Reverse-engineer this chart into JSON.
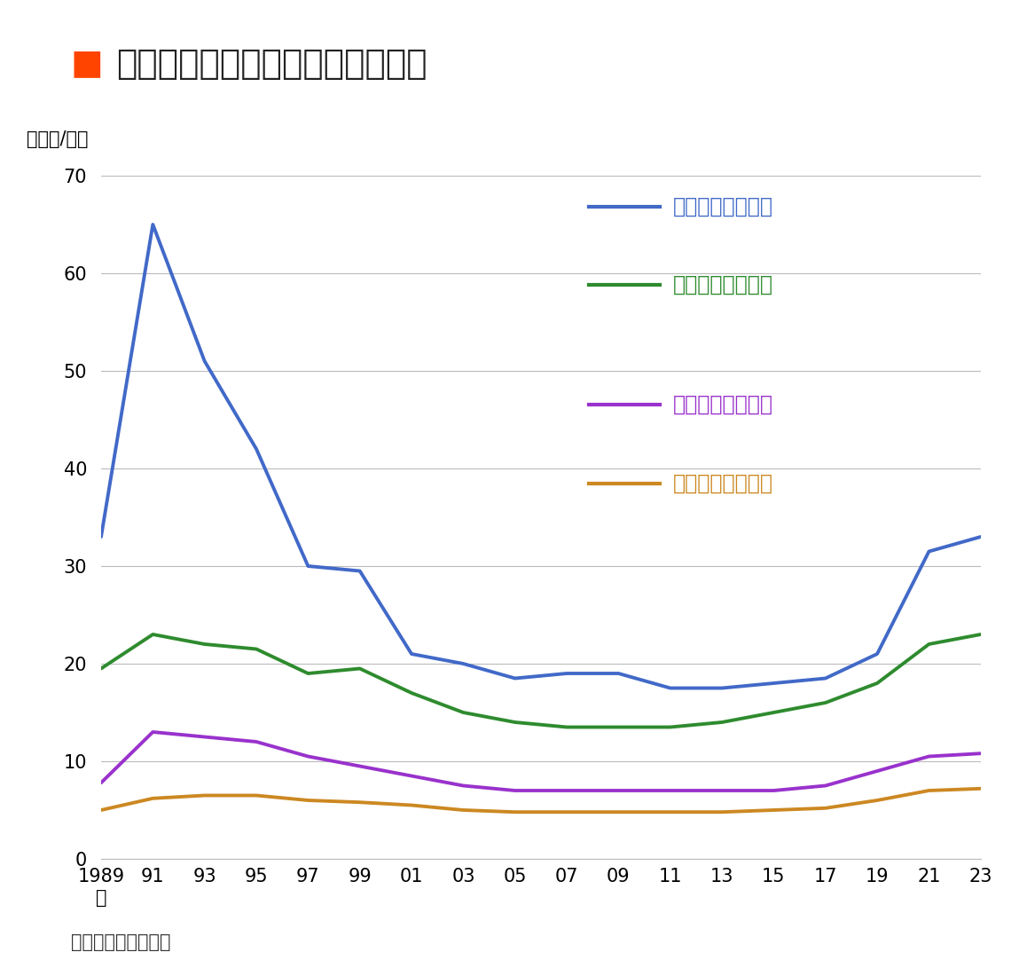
{
  "title": "沖縄県と那覇市の基準地価の推移",
  "title_rect_color": "#FF4400",
  "ylabel": "（万円/㎡）",
  "source": "（出所）国土交通省",
  "background_color": "#FFFFFF",
  "ylim": [
    0,
    70
  ],
  "yticks": [
    0,
    10,
    20,
    30,
    40,
    50,
    60,
    70
  ],
  "xtick_positions": [
    1989,
    1991,
    1993,
    1995,
    1997,
    1999,
    2001,
    2003,
    2005,
    2007,
    2009,
    2011,
    2013,
    2015,
    2017,
    2019,
    2021,
    2023
  ],
  "xtick_labels": [
    "1989\n年",
    "91",
    "93",
    "95",
    "97",
    "99",
    "01",
    "03",
    "05",
    "07",
    "09",
    "11",
    "13",
    "15",
    "17",
    "19",
    "21",
    "23"
  ],
  "series": [
    {
      "label": "那覇市【全用途】",
      "color": "#4169C8",
      "text_color": "#4169C8",
      "linewidth": 2.8,
      "data_x": [
        1989,
        1991,
        1993,
        1995,
        1997,
        1999,
        2001,
        2003,
        2005,
        2007,
        2009,
        2011,
        2013,
        2015,
        2017,
        2019,
        2021,
        2023
      ],
      "data_y": [
        33,
        65,
        51,
        42,
        30,
        29.5,
        21,
        20,
        18.5,
        19,
        19,
        17.5,
        17.5,
        18,
        18.5,
        21,
        31.5,
        33
      ]
    },
    {
      "label": "那覇市【住宅地】",
      "color": "#2E8B2E",
      "text_color": "#2E8B2E",
      "linewidth": 2.8,
      "data_x": [
        1989,
        1991,
        1993,
        1995,
        1997,
        1999,
        2001,
        2003,
        2005,
        2007,
        2009,
        2011,
        2013,
        2015,
        2017,
        2019,
        2021,
        2023
      ],
      "data_y": [
        19.5,
        23,
        22,
        21.5,
        19,
        19.5,
        17,
        15,
        14,
        13.5,
        13.5,
        13.5,
        14,
        15,
        16,
        18,
        22,
        23
      ]
    },
    {
      "label": "沖縄県【全用途】",
      "color": "#9932CC",
      "text_color": "#9932CC",
      "linewidth": 2.8,
      "data_x": [
        1989,
        1991,
        1993,
        1995,
        1997,
        1999,
        2001,
        2003,
        2005,
        2007,
        2009,
        2011,
        2013,
        2015,
        2017,
        2019,
        2021,
        2023
      ],
      "data_y": [
        7.8,
        13,
        12.5,
        12,
        10.5,
        9.5,
        8.5,
        7.5,
        7,
        7,
        7,
        7,
        7,
        7,
        7.5,
        9,
        10.5,
        10.8
      ]
    },
    {
      "label": "沖縄県【住宅地】",
      "color": "#CC8822",
      "text_color": "#CC8822",
      "linewidth": 2.8,
      "data_x": [
        1989,
        1991,
        1993,
        1995,
        1997,
        1999,
        2001,
        2003,
        2005,
        2007,
        2009,
        2011,
        2013,
        2015,
        2017,
        2019,
        2021,
        2023
      ],
      "data_y": [
        5.0,
        6.2,
        6.5,
        6.5,
        6.0,
        5.8,
        5.5,
        5.0,
        4.8,
        4.8,
        4.8,
        4.8,
        4.8,
        5.0,
        5.2,
        6.0,
        7.0,
        7.2
      ]
    }
  ],
  "grid_color": "#BBBBBB",
  "grid_linewidth": 0.8,
  "title_fontsize": 28,
  "ylabel_fontsize": 15,
  "tick_fontsize": 15,
  "source_fontsize": 15,
  "legend_fontsize": 17
}
